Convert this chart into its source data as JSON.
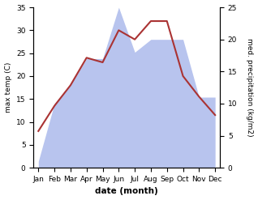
{
  "months": [
    "Jan",
    "Feb",
    "Mar",
    "Apr",
    "May",
    "Jun",
    "Jul",
    "Aug",
    "Sep",
    "Oct",
    "Nov",
    "Dec"
  ],
  "temperature": [
    8,
    13.5,
    18,
    24,
    23,
    30,
    28,
    32,
    32,
    20,
    15.5,
    11.5
  ],
  "precipitation": [
    1,
    10,
    13,
    17,
    17,
    25,
    18,
    20,
    20,
    20,
    11,
    11
  ],
  "temp_color": "#aa3333",
  "precip_fill_color": "#b8c4ee",
  "left_ylim": [
    0,
    35
  ],
  "right_ylim": [
    0,
    25
  ],
  "left_yticks": [
    0,
    5,
    10,
    15,
    20,
    25,
    30,
    35
  ],
  "right_yticks": [
    0,
    5,
    10,
    15,
    20,
    25
  ],
  "xlabel": "date (month)",
  "ylabel_left": "max temp (C)",
  "ylabel_right": "med. precipitation (kg/m2)",
  "figsize": [
    3.18,
    2.47
  ],
  "dpi": 100
}
